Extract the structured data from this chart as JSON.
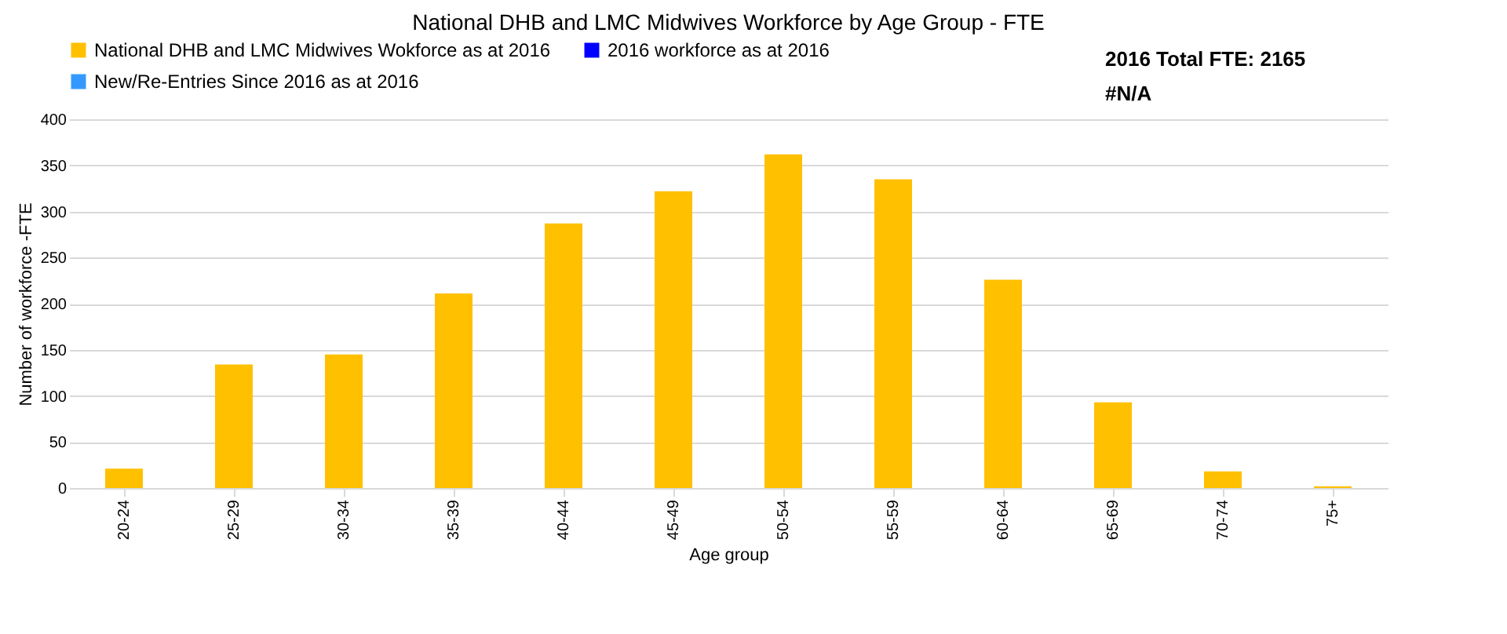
{
  "chart_data": {
    "type": "bar",
    "title": "National DHB and LMC Midwives Workforce by Age Group  - FTE",
    "xlabel": "Age group",
    "ylabel": "Number of workforce -FTE",
    "categories": [
      "20-24",
      "25-29",
      "30-34",
      "35-39",
      "40-44",
      "45-49",
      "50-54",
      "55-59",
      "60-64",
      "65-69",
      "70-74",
      "75+"
    ],
    "series": [
      {
        "name": "National DHB and LMC Midwives Wokforce as at 2016",
        "color": "#ffc000",
        "values": [
          21,
          134,
          145,
          211,
          287,
          322,
          362,
          335,
          226,
          93,
          18,
          2
        ]
      },
      {
        "name": "2016 workforce as at 2016",
        "color": "#0000ff",
        "values": [
          null,
          null,
          null,
          null,
          null,
          null,
          null,
          null,
          null,
          null,
          null,
          null
        ]
      },
      {
        "name": "New/Re-Entries Since 2016 as at 2016",
        "color": "#3399ff",
        "values": [
          null,
          null,
          null,
          null,
          null,
          null,
          null,
          null,
          null,
          null,
          null,
          null
        ]
      }
    ],
    "ylim": [
      0,
      400
    ],
    "yticks": [
      0,
      50,
      100,
      150,
      200,
      250,
      300,
      350,
      400
    ],
    "grid": "y",
    "legend": "top left",
    "annotations": [
      "2016 Total FTE: 2165",
      "#N/A"
    ]
  }
}
